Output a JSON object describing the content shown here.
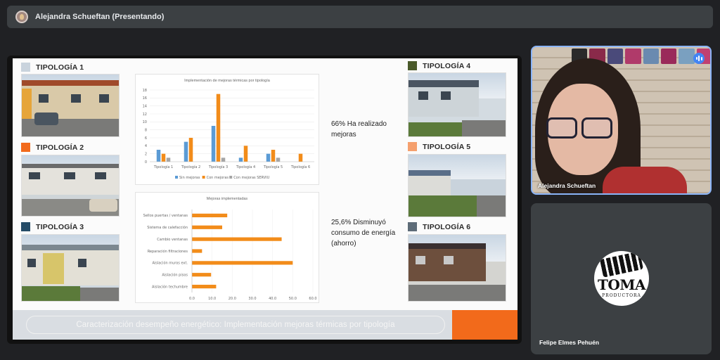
{
  "topbar": {
    "presenter_label": "Alejandra Schueftan (Presentando)"
  },
  "slide": {
    "typologies": [
      {
        "label": "TIPOLOGÍA 1",
        "color": "#c9d3dd"
      },
      {
        "label": "TIPOLOGÍA 2",
        "color": "#f26a1b"
      },
      {
        "label": "TIPOLOGÍA 3",
        "color": "#254c67"
      },
      {
        "label": "TIPOLOGÍA 4",
        "color": "#4a5a2a"
      },
      {
        "label": "TIPOLOGÍA 5",
        "color": "#f5a06e"
      },
      {
        "label": "TIPOLOGÍA 6",
        "color": "#5e6c78"
      }
    ],
    "stat1": "66% Ha realizado mejoras",
    "stat2": "25,6% Disminuyó consumo de energía (ahorro)",
    "banner": "Caracterización desempeño energético: Implementación mejoras térmicas por tipología"
  },
  "chart_data": [
    {
      "type": "bar",
      "title": "Implementación de mejoras térmicas por tipología",
      "categories": [
        "Tipología 1",
        "Tipología 2",
        "Tipología 3",
        "Tipología 4",
        "Tipología 5",
        "Tipología 6"
      ],
      "series": [
        {
          "name": "Sin mejoras",
          "color": "#5b9bd5",
          "values": [
            3,
            5,
            9,
            1,
            2,
            0
          ]
        },
        {
          "name": "Con mejoras",
          "color": "#f28c1a",
          "values": [
            2,
            6,
            17,
            4,
            3,
            2
          ]
        },
        {
          "name": "Con mejoras SERVIU",
          "color": "#a5a5a5",
          "values": [
            1,
            0,
            1,
            0,
            1,
            0
          ]
        }
      ],
      "yticks": [
        "0",
        "2",
        "4",
        "6",
        "8",
        "10",
        "12",
        "14",
        "16",
        "18"
      ],
      "ylim": [
        0,
        18
      ],
      "legend": "bottom"
    },
    {
      "type": "bar",
      "orientation": "horizontal",
      "title": "Mejoras implementadas",
      "categories": [
        "Sellos puertas / ventanas",
        "Sistema de calefacción",
        "Cambio ventanas",
        "Reparación filtraciones",
        "Aislación muros ext.",
        "Aislación pisos",
        "Aislación techumbre"
      ],
      "values": [
        17.5,
        15,
        44.5,
        5,
        50,
        9.5,
        12
      ],
      "color": "#f28c1a",
      "xticks": [
        "0.0",
        "10.0",
        "20.0",
        "30.0",
        "40.0",
        "50.0",
        "60.0"
      ],
      "xlim": [
        0,
        60
      ]
    }
  ],
  "participants": {
    "main": {
      "name": "Alejandra Schueftan"
    },
    "second": {
      "name": "Felipe Elmes Pehuén",
      "logo_top": "TOMA",
      "logo_bottom": "PRODUCTORA"
    }
  }
}
